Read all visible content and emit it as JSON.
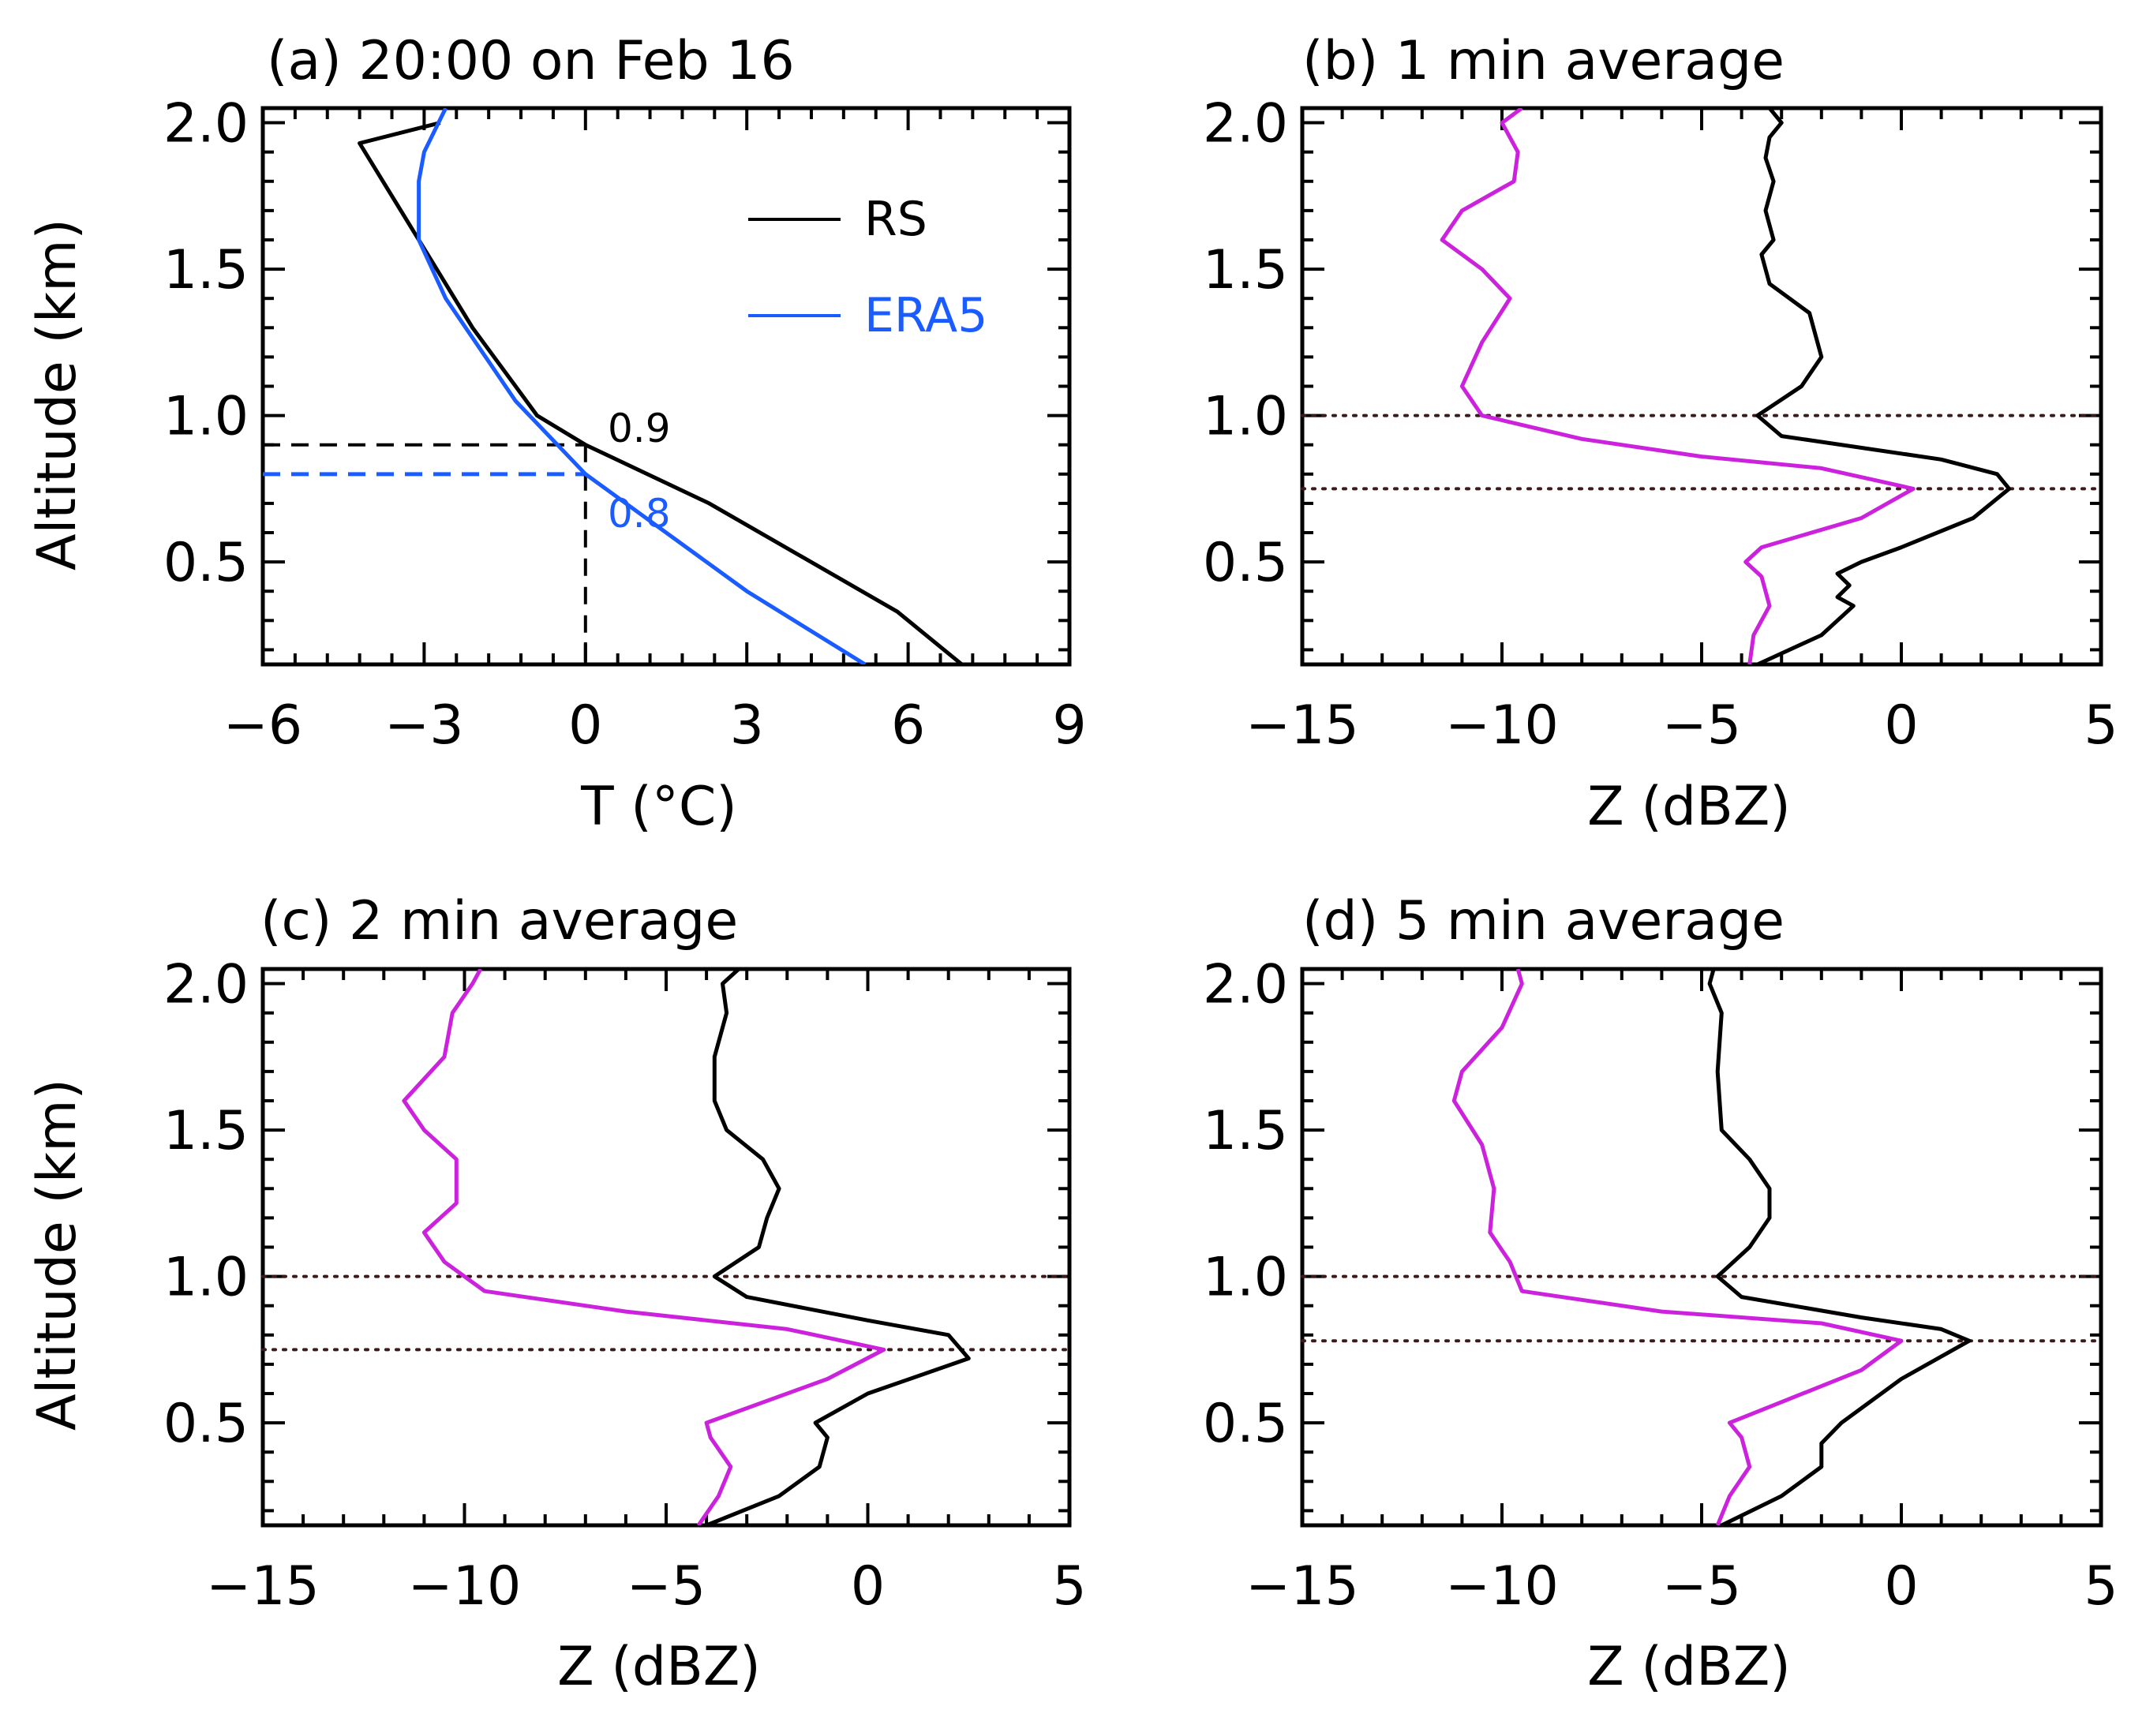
{
  "colors": {
    "rs": "#000000",
    "era5": "#1a5cff",
    "magenta": "#cc22dd",
    "dotted": "#3a1a1a"
  },
  "chart_data": [
    {
      "panel": "a",
      "type": "line",
      "title": "(a) 20:00 on Feb 16",
      "xlabel": "T (°C)",
      "ylabel": "Altitude (km)",
      "xlim": [
        -6,
        9
      ],
      "ylim": [
        0.15,
        2.05
      ],
      "xticks": [
        "−6",
        "−3",
        "0",
        "3",
        "6",
        "9"
      ],
      "yticks": [
        "0.5",
        "1.0",
        "1.5",
        "2.0"
      ],
      "legend": {
        "position": "top-right",
        "entries": [
          "RS",
          "ERA5"
        ]
      },
      "series": [
        {
          "name": "RS",
          "color": "#000000",
          "x": [
            7.0,
            5.8,
            2.3,
            0.0,
            -0.9,
            -2.1,
            -3.1,
            -4.2,
            -2.7
          ],
          "y": [
            0.15,
            0.33,
            0.7,
            0.9,
            1.0,
            1.3,
            1.6,
            1.93,
            2.0
          ]
        },
        {
          "name": "ERA5",
          "color": "#1a5cff",
          "x": [
            5.2,
            3.0,
            0.0,
            -1.3,
            -2.6,
            -3.1,
            -3.1,
            -3.0,
            -2.6
          ],
          "y": [
            0.15,
            0.4,
            0.8,
            1.05,
            1.4,
            1.6,
            1.8,
            1.9,
            2.05
          ]
        }
      ],
      "annotations": [
        {
          "text": "0.9",
          "x": 0.4,
          "y": 0.93,
          "color": "#000000"
        },
        {
          "text": "0.8",
          "x": 0.4,
          "y": 0.71,
          "color": "#1a5cff"
        }
      ],
      "guides": {
        "rs_melt_y": 0.9,
        "era5_melt_y": 0.8,
        "zero_x": 0
      }
    },
    {
      "panel": "b",
      "type": "line",
      "title": "(b) 1 min average",
      "xlabel": "Z (dBZ)",
      "xlim": [
        -15,
        5
      ],
      "ylim": [
        0.15,
        2.05
      ],
      "xticks": [
        "−15",
        "−10",
        "−5",
        "0",
        "5"
      ],
      "yticks": [
        "0.5",
        "1.0",
        "1.5",
        "2.0"
      ],
      "hlines": [
        1.0,
        0.75
      ],
      "series": [
        {
          "color": "#000000",
          "x": [
            -3.6,
            -2.0,
            -1.2,
            -1.6,
            -1.3,
            -1.6,
            -1.0,
            0.0,
            1.8,
            2.7,
            2.4,
            1.0,
            -3.0,
            -3.6,
            -2.5,
            -2.0,
            -2.3,
            -3.3,
            -3.5,
            -3.2,
            -3.4,
            -3.2,
            -3.4,
            -3.3,
            -3.0,
            -3.3
          ],
          "y": [
            0.15,
            0.25,
            0.35,
            0.38,
            0.42,
            0.46,
            0.5,
            0.55,
            0.65,
            0.75,
            0.8,
            0.85,
            0.93,
            1.0,
            1.1,
            1.2,
            1.35,
            1.45,
            1.55,
            1.6,
            1.7,
            1.8,
            1.88,
            1.95,
            2.0,
            2.05
          ]
        },
        {
          "color": "#cc22dd",
          "x": [
            -3.8,
            -3.7,
            -3.3,
            -3.5,
            -3.9,
            -3.5,
            -1.0,
            0.3,
            -2.0,
            -5.0,
            -8.0,
            -10.5,
            -11.0,
            -10.5,
            -9.8,
            -10.5,
            -11.5,
            -11.0,
            -9.7,
            -9.6,
            -10.0,
            -9.5
          ],
          "y": [
            0.15,
            0.25,
            0.35,
            0.45,
            0.5,
            0.55,
            0.65,
            0.75,
            0.82,
            0.86,
            0.92,
            1.0,
            1.1,
            1.25,
            1.4,
            1.5,
            1.6,
            1.7,
            1.8,
            1.9,
            2.0,
            2.05
          ]
        }
      ]
    },
    {
      "panel": "c",
      "type": "line",
      "title": "(c) 2 min average",
      "xlabel": "Z (dBZ)",
      "ylabel": "Altitude (km)",
      "xlim": [
        -15,
        5
      ],
      "ylim": [
        0.15,
        2.05
      ],
      "xticks": [
        "−15",
        "−10",
        "−5",
        "0",
        "5"
      ],
      "yticks": [
        "0.5",
        "1.0",
        "1.5",
        "2.0"
      ],
      "hlines": [
        1.0,
        0.75
      ],
      "series": [
        {
          "color": "#000000",
          "x": [
            -4.0,
            -2.2,
            -1.2,
            -1.0,
            -1.3,
            0.0,
            2.5,
            2.0,
            0.0,
            -3.0,
            -3.8,
            -2.7,
            -2.5,
            -2.2,
            -2.6,
            -3.5,
            -3.8,
            -3.8,
            -3.5,
            -3.6,
            -3.2
          ],
          "y": [
            0.15,
            0.25,
            0.35,
            0.45,
            0.5,
            0.6,
            0.72,
            0.8,
            0.85,
            0.93,
            1.0,
            1.1,
            1.2,
            1.3,
            1.4,
            1.5,
            1.6,
            1.75,
            1.9,
            2.0,
            2.05
          ]
        },
        {
          "color": "#cc22dd",
          "x": [
            -4.2,
            -3.7,
            -3.4,
            -3.9,
            -4.0,
            -1.0,
            0.4,
            -2.0,
            -6.0,
            -9.5,
            -10.5,
            -11.0,
            -10.2,
            -10.2,
            -11.0,
            -11.5,
            -10.5,
            -10.3,
            -9.8,
            -9.6
          ],
          "y": [
            0.15,
            0.25,
            0.35,
            0.45,
            0.5,
            0.65,
            0.75,
            0.82,
            0.88,
            0.95,
            1.05,
            1.15,
            1.25,
            1.4,
            1.5,
            1.6,
            1.75,
            1.9,
            2.0,
            2.05
          ]
        }
      ]
    },
    {
      "panel": "d",
      "type": "line",
      "title": "(d) 5 min average",
      "xlabel": "Z (dBZ)",
      "xlim": [
        -15,
        5
      ],
      "ylim": [
        0.15,
        2.05
      ],
      "xticks": [
        "−15",
        "−10",
        "−5",
        "0",
        "5"
      ],
      "yticks": [
        "0.5",
        "1.0",
        "1.5",
        "2.0"
      ],
      "hlines": [
        1.0,
        0.78
      ],
      "series": [
        {
          "color": "#000000",
          "x": [
            -4.5,
            -3.0,
            -2.0,
            -2.0,
            -1.5,
            0.0,
            1.7,
            1.0,
            -1.0,
            -4.0,
            -4.6,
            -3.8,
            -3.3,
            -3.3,
            -3.8,
            -4.5,
            -4.6,
            -4.5,
            -4.8,
            -4.7
          ],
          "y": [
            0.15,
            0.25,
            0.35,
            0.43,
            0.5,
            0.65,
            0.78,
            0.82,
            0.86,
            0.93,
            1.0,
            1.1,
            1.2,
            1.3,
            1.4,
            1.5,
            1.7,
            1.9,
            2.0,
            2.05
          ]
        },
        {
          "color": "#cc22dd",
          "x": [
            -4.6,
            -4.3,
            -3.8,
            -4.0,
            -4.3,
            -1.0,
            0.0,
            -2.0,
            -6.0,
            -9.5,
            -9.8,
            -10.3,
            -10.2,
            -10.5,
            -11.2,
            -11.0,
            -10.0,
            -9.5,
            -9.6
          ],
          "y": [
            0.15,
            0.25,
            0.35,
            0.45,
            0.5,
            0.68,
            0.78,
            0.84,
            0.88,
            0.95,
            1.05,
            1.15,
            1.3,
            1.45,
            1.6,
            1.7,
            1.85,
            2.0,
            2.05
          ]
        }
      ]
    }
  ]
}
